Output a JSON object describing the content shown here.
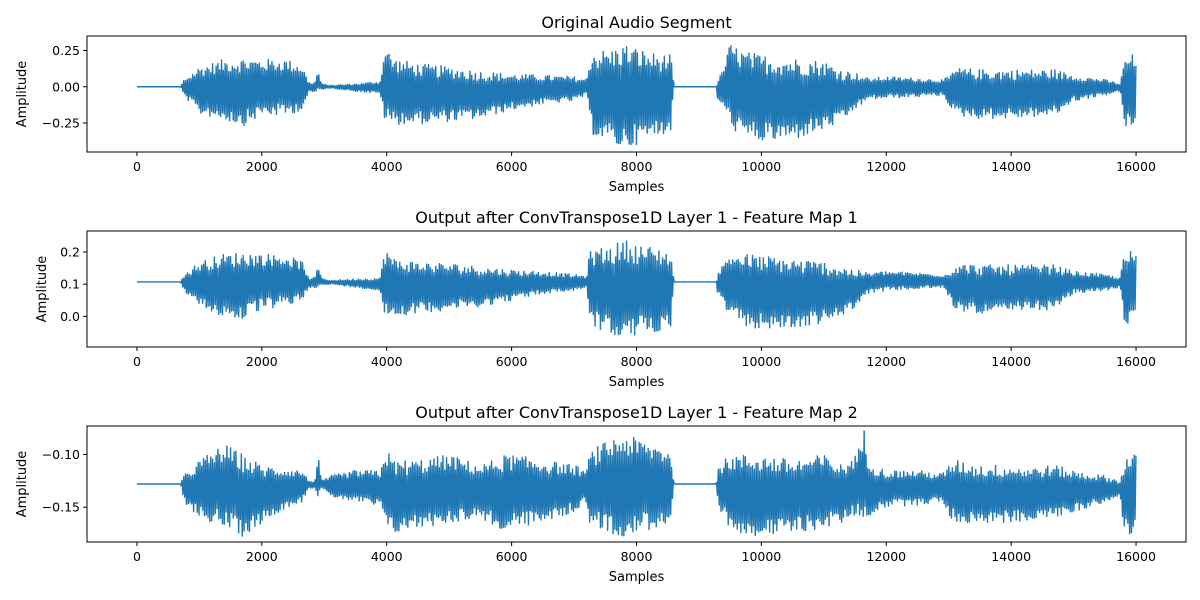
{
  "figure": {
    "colors": {
      "line": "#1f77b4",
      "axes": "#000000",
      "background": "#ffffff"
    }
  },
  "chart_data": [
    {
      "type": "line",
      "title": "Original Audio Segment",
      "xlabel": "Samples",
      "ylabel": "Amplitude",
      "xlim": [
        -800,
        16800
      ],
      "ylim": [
        -0.45,
        0.35
      ],
      "xticks": [
        0,
        2000,
        4000,
        6000,
        8000,
        10000,
        12000,
        14000,
        16000
      ],
      "xtick_labels": [
        "0",
        "2000",
        "4000",
        "6000",
        "8000",
        "10000",
        "12000",
        "14000",
        "16000"
      ],
      "yticks": [
        0.25,
        0.0,
        -0.25
      ],
      "ytick_labels": [
        "0.25",
        "0.00",
        "−0.25"
      ],
      "grid": false,
      "legend": "none",
      "series": [
        {
          "x": [
            0,
            700,
            750,
            1000,
            1400,
            1700,
            2000,
            2400,
            2650,
            2750,
            2850,
            2900,
            2950,
            3100,
            3500,
            3900,
            3950,
            4000,
            4100,
            4500,
            5000,
            5500,
            6000,
            6500,
            7000,
            7200,
            7250,
            7300,
            7600,
            7800,
            8000,
            8300,
            8550,
            8600,
            9000,
            9280,
            9300,
            9350,
            9500,
            9700,
            10000,
            10500,
            11000,
            11300,
            11500,
            11700,
            12000,
            12500,
            12900,
            13000,
            13100,
            13500,
            14000,
            14300,
            14700,
            15000,
            15500,
            15750,
            15800,
            15900,
            16000
          ],
          "upper": [
            0,
            0,
            0.05,
            0.14,
            0.19,
            0.2,
            0.19,
            0.19,
            0.15,
            0.03,
            0.03,
            0.12,
            0.02,
            0.01,
            0.02,
            0.04,
            0.25,
            0.27,
            0.2,
            0.16,
            0.14,
            0.11,
            0.09,
            0.08,
            0.07,
            0.05,
            0.2,
            0.25,
            0.26,
            0.3,
            0.27,
            0.23,
            0.22,
            0,
            0,
            0,
            0.07,
            0.08,
            0.3,
            0.25,
            0.22,
            0.2,
            0.18,
            0.12,
            0.1,
            0.06,
            0.07,
            0.06,
            0.05,
            0.07,
            0.13,
            0.12,
            0.12,
            0.12,
            0.12,
            0.08,
            0.05,
            0.02,
            0.17,
            0.24,
            0.2
          ],
          "lower": [
            0,
            0,
            -0.06,
            -0.19,
            -0.23,
            -0.27,
            -0.2,
            -0.2,
            -0.16,
            -0.04,
            -0.04,
            -0.03,
            -0.02,
            -0.01,
            -0.03,
            -0.05,
            -0.23,
            -0.25,
            -0.26,
            -0.26,
            -0.24,
            -0.22,
            -0.16,
            -0.12,
            -0.1,
            -0.06,
            -0.22,
            -0.33,
            -0.4,
            -0.43,
            -0.4,
            -0.35,
            -0.3,
            0,
            0,
            0,
            -0.1,
            -0.11,
            -0.27,
            -0.36,
            -0.38,
            -0.37,
            -0.3,
            -0.24,
            -0.16,
            -0.09,
            -0.08,
            -0.07,
            -0.06,
            -0.12,
            -0.2,
            -0.22,
            -0.22,
            -0.21,
            -0.2,
            -0.1,
            -0.06,
            -0.03,
            -0.27,
            -0.3,
            -0.29
          ]
        }
      ]
    },
    {
      "type": "line",
      "title": "Output after ConvTranspose1D Layer 1 - Feature Map 1",
      "xlabel": "Samples",
      "ylabel": "Amplitude",
      "xlim": [
        -800,
        16800
      ],
      "ylim": [
        -0.095,
        0.265
      ],
      "xticks": [
        0,
        2000,
        4000,
        6000,
        8000,
        10000,
        12000,
        14000,
        16000
      ],
      "xtick_labels": [
        "0",
        "2000",
        "4000",
        "6000",
        "8000",
        "10000",
        "12000",
        "14000",
        "16000"
      ],
      "yticks": [
        0.2,
        0.1,
        0.0
      ],
      "ytick_labels": [
        "0.2",
        "0.1",
        "0.0"
      ],
      "grid": false,
      "legend": "none",
      "series": [
        {
          "x": [
            0,
            700,
            750,
            1000,
            1400,
            1700,
            2000,
            2400,
            2650,
            2750,
            2850,
            2900,
            2950,
            3100,
            3500,
            3900,
            3950,
            4000,
            4100,
            4500,
            5000,
            5500,
            6000,
            6500,
            7000,
            7200,
            7250,
            7300,
            7600,
            7800,
            8000,
            8300,
            8550,
            8600,
            9000,
            9280,
            9300,
            9350,
            9500,
            9700,
            10000,
            10500,
            11000,
            11300,
            11500,
            11700,
            12000,
            12500,
            12900,
            13000,
            13100,
            13500,
            14000,
            14300,
            14700,
            15000,
            15500,
            15750,
            15800,
            15900,
            16000
          ],
          "upper": [
            0.107,
            0.107,
            0.13,
            0.17,
            0.195,
            0.2,
            0.195,
            0.19,
            0.17,
            0.12,
            0.12,
            0.16,
            0.12,
            0.112,
            0.117,
            0.12,
            0.2,
            0.21,
            0.18,
            0.17,
            0.165,
            0.155,
            0.145,
            0.14,
            0.13,
            0.125,
            0.2,
            0.21,
            0.22,
            0.24,
            0.225,
            0.215,
            0.205,
            0.107,
            0.107,
            0.107,
            0.145,
            0.15,
            0.2,
            0.195,
            0.19,
            0.18,
            0.17,
            0.155,
            0.145,
            0.135,
            0.14,
            0.135,
            0.13,
            0.135,
            0.165,
            0.16,
            0.16,
            0.16,
            0.16,
            0.14,
            0.13,
            0.12,
            0.19,
            0.205,
            0.19
          ],
          "lower": [
            0.107,
            0.107,
            0.08,
            0.03,
            -0.005,
            -0.01,
            0.02,
            0.03,
            0.05,
            0.09,
            0.09,
            0.09,
            0.095,
            0.1,
            0.09,
            0.08,
            0.0,
            0.0,
            0.0,
            0.01,
            0.02,
            0.03,
            0.05,
            0.07,
            0.08,
            0.09,
            0.0,
            -0.03,
            -0.06,
            -0.08,
            -0.06,
            -0.05,
            -0.03,
            0.107,
            0.107,
            0.107,
            0.06,
            0.055,
            -0.01,
            -0.03,
            -0.04,
            -0.04,
            -0.02,
            0.0,
            0.03,
            0.07,
            0.08,
            0.085,
            0.09,
            0.06,
            0.02,
            0.01,
            0.01,
            0.02,
            0.02,
            0.07,
            0.08,
            0.09,
            -0.02,
            -0.025,
            -0.015
          ]
        }
      ]
    },
    {
      "type": "line",
      "title": "Output after ConvTranspose1D Layer 1 - Feature Map 2",
      "xlabel": "Samples",
      "ylabel": "Amplitude",
      "xlim": [
        -800,
        16800
      ],
      "ylim": [
        -0.183,
        -0.073
      ],
      "xticks": [
        0,
        2000,
        4000,
        6000,
        8000,
        10000,
        12000,
        14000,
        16000
      ],
      "xtick_labels": [
        "0",
        "2000",
        "4000",
        "6000",
        "8000",
        "10000",
        "12000",
        "14000",
        "16000"
      ],
      "yticks": [
        -0.1,
        -0.15
      ],
      "ytick_labels": [
        "−0.10",
        "−0.15"
      ],
      "grid": false,
      "legend": "none",
      "series": [
        {
          "x": [
            0,
            700,
            750,
            1000,
            1400,
            1700,
            2000,
            2400,
            2650,
            2750,
            2850,
            2900,
            2950,
            3100,
            3500,
            3900,
            3950,
            4000,
            4100,
            4500,
            5000,
            5500,
            5900,
            6000,
            6500,
            7000,
            7200,
            7250,
            7300,
            7600,
            7800,
            8000,
            8300,
            8550,
            8600,
            9000,
            9280,
            9300,
            9350,
            9500,
            9700,
            10000,
            10500,
            11000,
            11300,
            11500,
            11600,
            11650,
            11700,
            11800,
            12000,
            12500,
            12900,
            13000,
            13100,
            13500,
            14000,
            14300,
            14700,
            15000,
            15500,
            15750,
            15800,
            15900,
            16000
          ],
          "upper": [
            -0.128,
            -0.128,
            -0.12,
            -0.105,
            -0.09,
            -0.1,
            -0.11,
            -0.113,
            -0.115,
            -0.125,
            -0.125,
            -0.1,
            -0.125,
            -0.12,
            -0.115,
            -0.115,
            -0.1,
            -0.095,
            -0.105,
            -0.105,
            -0.1,
            -0.11,
            -0.1,
            -0.1,
            -0.105,
            -0.11,
            -0.115,
            -0.1,
            -0.095,
            -0.085,
            -0.08,
            -0.085,
            -0.09,
            -0.095,
            -0.128,
            -0.128,
            -0.128,
            -0.11,
            -0.108,
            -0.1,
            -0.1,
            -0.1,
            -0.105,
            -0.1,
            -0.11,
            -0.1,
            -0.09,
            -0.075,
            -0.1,
            -0.11,
            -0.115,
            -0.115,
            -0.118,
            -0.11,
            -0.105,
            -0.11,
            -0.11,
            -0.112,
            -0.11,
            -0.115,
            -0.12,
            -0.125,
            -0.105,
            -0.1,
            -0.1
          ],
          "lower": [
            -0.128,
            -0.128,
            -0.145,
            -0.16,
            -0.17,
            -0.178,
            -0.165,
            -0.15,
            -0.145,
            -0.132,
            -0.132,
            -0.14,
            -0.132,
            -0.14,
            -0.145,
            -0.15,
            -0.165,
            -0.17,
            -0.175,
            -0.17,
            -0.165,
            -0.16,
            -0.175,
            -0.17,
            -0.165,
            -0.155,
            -0.145,
            -0.165,
            -0.17,
            -0.175,
            -0.178,
            -0.175,
            -0.17,
            -0.165,
            -0.128,
            -0.128,
            -0.128,
            -0.15,
            -0.155,
            -0.17,
            -0.175,
            -0.178,
            -0.175,
            -0.17,
            -0.165,
            -0.158,
            -0.16,
            -0.165,
            -0.16,
            -0.155,
            -0.15,
            -0.148,
            -0.145,
            -0.158,
            -0.165,
            -0.165,
            -0.165,
            -0.162,
            -0.16,
            -0.155,
            -0.145,
            -0.14,
            -0.175,
            -0.178,
            -0.172
          ]
        }
      ]
    }
  ]
}
